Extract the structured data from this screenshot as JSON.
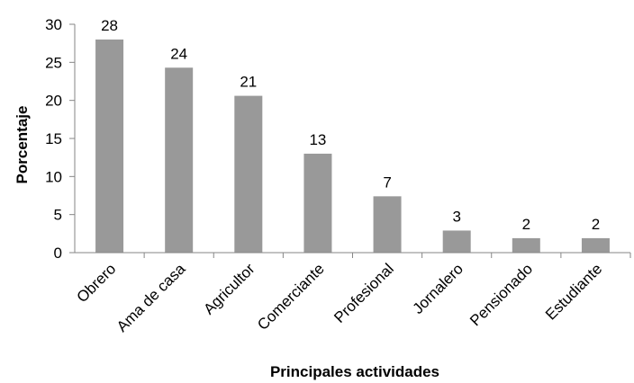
{
  "chart_data": {
    "type": "bar",
    "title": "",
    "xlabel": "Principales actividades",
    "ylabel": "Porcentaje",
    "categories": [
      "Obrero",
      "Ama de casa",
      "Agricultor",
      "Comerciante",
      "Profesional",
      "Jornalero",
      "Pensionado",
      "Estudiante"
    ],
    "values": [
      28,
      24.3,
      20.6,
      13,
      7.4,
      2.9,
      1.9,
      1.9
    ],
    "data_labels": [
      "28",
      "24",
      "21",
      "13",
      "7",
      "3",
      "2",
      "2"
    ],
    "ylim": [
      0,
      30
    ],
    "yticks": [
      "0",
      "5",
      "10",
      "15",
      "20",
      "25",
      "30"
    ],
    "grid": false,
    "bar_color": "#999999",
    "axis_color": "#868686"
  }
}
